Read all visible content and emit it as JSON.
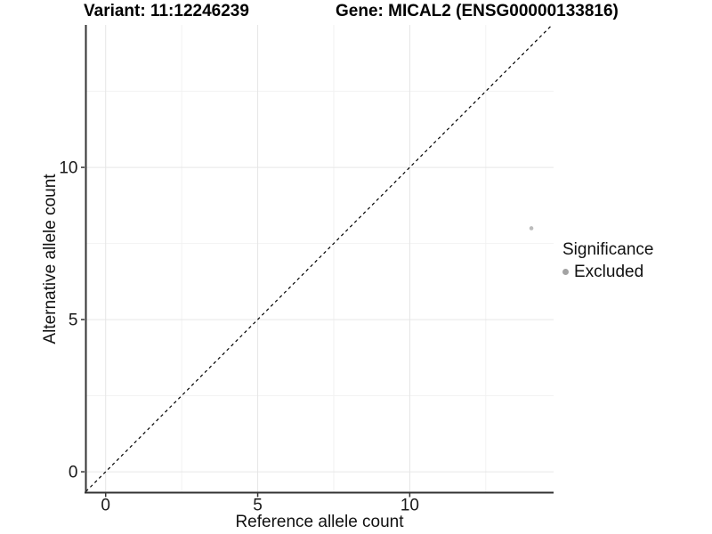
{
  "titles": {
    "variant": "Variant: 11:12246239",
    "gene": "Gene: MICAL2 (ENSG00000133816)"
  },
  "axes": {
    "x": {
      "title": "Reference allele count"
    },
    "y": {
      "title": "Alternative allele count"
    }
  },
  "legend": {
    "title": "Significance",
    "items": [
      {
        "label": "Excluded",
        "color": "#a3a3a3"
      }
    ]
  },
  "chart_data": {
    "type": "scatter",
    "title_left": "Variant: 11:12246239",
    "title_right": "Gene: MICAL2 (ENSG00000133816)",
    "xlabel": "Reference allele count",
    "ylabel": "Alternative allele count",
    "xlim": [
      -0.65,
      14.73
    ],
    "ylim": [
      -0.67,
      14.68
    ],
    "x_ticks": [
      0,
      5,
      10
    ],
    "x_tick_labels": [
      "0",
      "5",
      "10"
    ],
    "y_ticks": [
      0,
      5,
      10
    ],
    "y_tick_labels": [
      "0",
      "5",
      "10"
    ],
    "x_minor_ticks": [
      2.5,
      7.5,
      12.5
    ],
    "y_minor_ticks": [
      2.5,
      7.5,
      12.5
    ],
    "grid": true,
    "legend_position": "right",
    "series": [
      {
        "name": "Excluded",
        "color": "#bcbcbc",
        "points": [
          {
            "x": 14,
            "y": 8
          }
        ]
      }
    ],
    "reference_line": {
      "kind": "identity",
      "slope": 1,
      "intercept": 0,
      "style": "dashed",
      "color": "#000000"
    }
  },
  "colors": {
    "grid_major": "#e6e6e6",
    "grid_minor": "#f2f2f2",
    "axis_line": "#333333",
    "tick_mark": "#333333",
    "tick_text": "#1a1a1a",
    "point": "#bcbcbc"
  }
}
